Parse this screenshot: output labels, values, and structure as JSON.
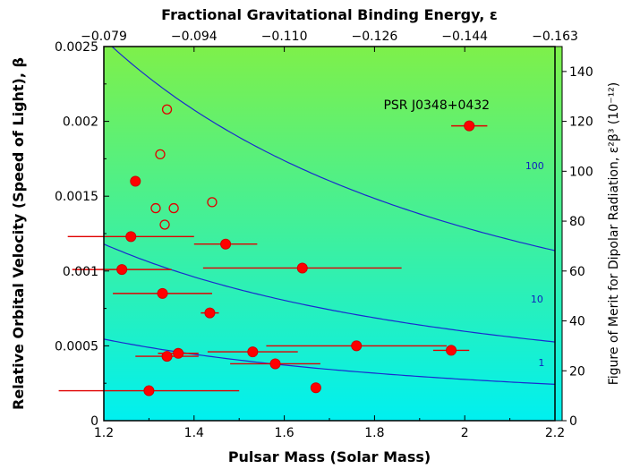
{
  "chart_data": {
    "type": "scatter",
    "xlabel": "Pulsar Mass (Solar Mass)",
    "ylabel": "Relative Orbital Velocity (Speed of Light), β",
    "top_xlabel": "Fractional Gravitational Binding Energy, ε",
    "right_ylabel": "Figure of Merit for Dipolar Radiation, ε²β³ (10⁻¹²)",
    "xlim": [
      1.2,
      2.2
    ],
    "ylim": [
      0,
      0.0025
    ],
    "colorbar_lim": [
      0,
      150
    ],
    "grid": false,
    "background": "vertical gradient cyan (0) to green (150)",
    "x_ticks": [
      "1.2",
      "1.4",
      "1.6",
      "1.8",
      "2",
      "2.2"
    ],
    "y_ticks": [
      "0",
      "0.0005",
      "0.001",
      "0.0015",
      "0.002",
      "0.0025"
    ],
    "top_ticks": [
      "−0.079",
      "−0.094",
      "−0.110",
      "−0.126",
      "−0.144",
      "−0.163"
    ],
    "colorbar_ticks": [
      "0",
      "20",
      "40",
      "60",
      "80",
      "100",
      "120",
      "140"
    ],
    "contours": [
      {
        "label": "1",
        "A": 0.000545,
        "label_x": 2.17,
        "label_y": 0.000365
      },
      {
        "label": "10",
        "A": 0.00118,
        "label_x": 2.16,
        "label_y": 0.00079
      },
      {
        "label": "100",
        "A": 0.00255,
        "label_x": 2.155,
        "label_y": 0.00168
      }
    ],
    "annotation": {
      "text": "PSR J0348+0432",
      "x": 1.82,
      "y": 0.00208
    },
    "filled_points": [
      {
        "x": 2.01,
        "y": 0.00197,
        "xerr": 0.04
      },
      {
        "x": 1.27,
        "y": 0.0016,
        "xerr": 0
      },
      {
        "x": 1.26,
        "y": 0.00123,
        "xerr": 0.14
      },
      {
        "x": 1.47,
        "y": 0.00118,
        "xerr": 0.07
      },
      {
        "x": 1.24,
        "y": 0.00101,
        "xerr": 0.11
      },
      {
        "x": 1.64,
        "y": 0.00102,
        "xerr": 0.22
      },
      {
        "x": 1.33,
        "y": 0.00085,
        "xerr": 0.11
      },
      {
        "x": 1.435,
        "y": 0.00072,
        "xerr": 0.02
      },
      {
        "x": 1.76,
        "y": 0.0005,
        "xerr": 0.2
      },
      {
        "x": 1.97,
        "y": 0.00047,
        "xerr": 0.04
      },
      {
        "x": 1.53,
        "y": 0.00046,
        "xerr": 0.1
      },
      {
        "x": 1.365,
        "y": 0.00045,
        "xerr": 0.045
      },
      {
        "x": 1.34,
        "y": 0.00043,
        "xerr": 0.07
      },
      {
        "x": 1.58,
        "y": 0.00038,
        "xerr": 0.1
      },
      {
        "x": 1.3,
        "y": 0.0002,
        "xerr": 0.2
      },
      {
        "x": 1.67,
        "y": 0.00022,
        "xerr": 0
      }
    ],
    "open_points": [
      {
        "x": 1.34,
        "y": 0.00208
      },
      {
        "x": 1.325,
        "y": 0.00178
      },
      {
        "x": 1.44,
        "y": 0.00146
      },
      {
        "x": 1.315,
        "y": 0.00142
      },
      {
        "x": 1.355,
        "y": 0.00142
      },
      {
        "x": 1.335,
        "y": 0.00131
      }
    ]
  }
}
